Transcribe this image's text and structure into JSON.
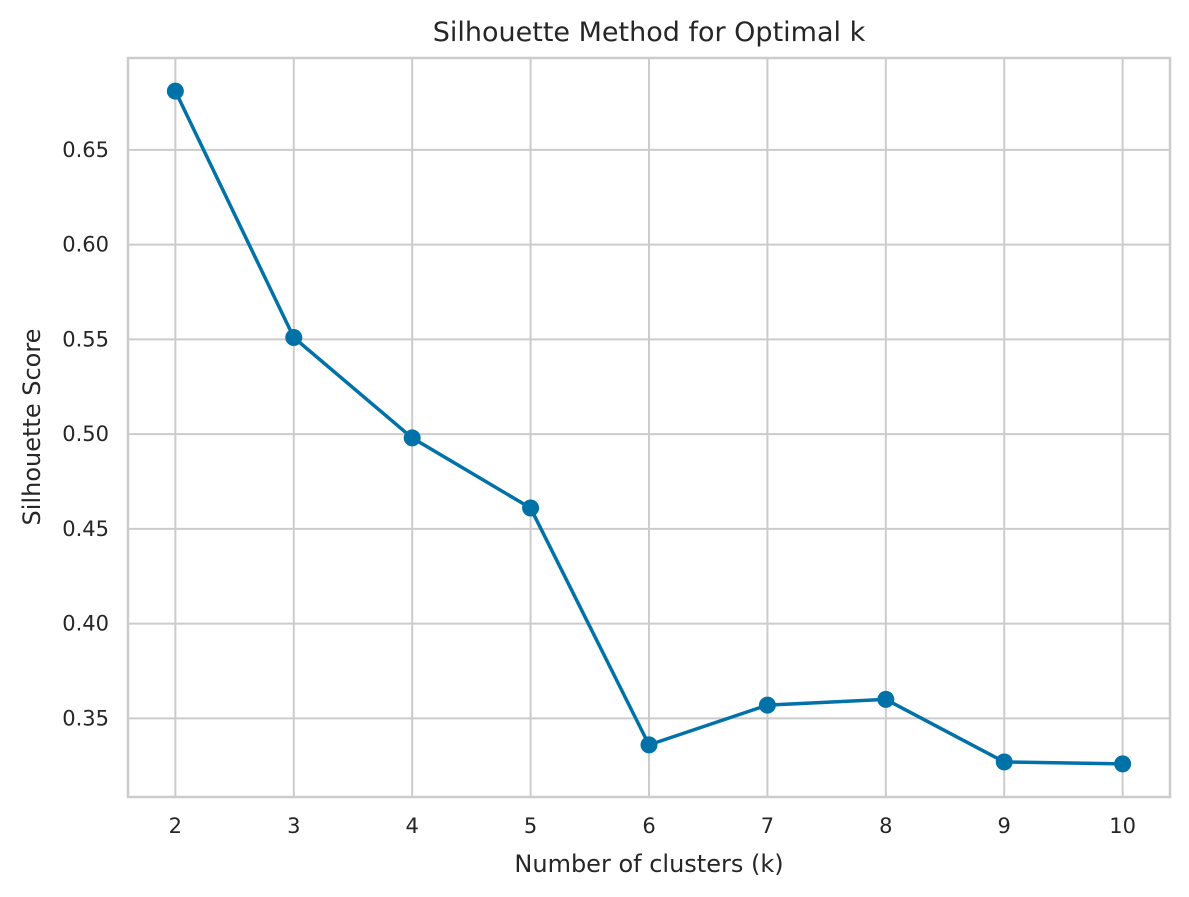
{
  "chart_data": {
    "type": "line",
    "title": "Silhouette Method for Optimal k",
    "xlabel": "Number of clusters (k)",
    "ylabel": "Silhouette Score",
    "x": [
      2,
      3,
      4,
      5,
      6,
      7,
      8,
      9,
      10
    ],
    "series": [
      {
        "values": [
          0.681,
          0.551,
          0.498,
          0.461,
          0.336,
          0.357,
          0.36,
          0.327,
          0.326
        ],
        "color": "#0072a8",
        "marker": "circle"
      }
    ],
    "xticks": [
      "2",
      "3",
      "4",
      "5",
      "6",
      "7",
      "8",
      "9",
      "10"
    ],
    "yticks": [
      "0.35",
      "0.40",
      "0.45",
      "0.50",
      "0.55",
      "0.60",
      "0.65"
    ],
    "ytick_values": [
      0.35,
      0.4,
      0.45,
      0.5,
      0.55,
      0.6,
      0.65
    ],
    "xlim": [
      1.6,
      10.4
    ],
    "ylim": [
      0.3085,
      0.6985
    ],
    "grid": true,
    "legend": "none"
  }
}
